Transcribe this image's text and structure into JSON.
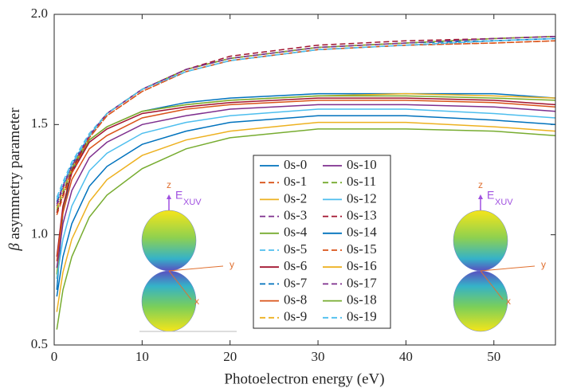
{
  "chart_data": {
    "type": "line",
    "x_label": "Photoelectron energy (eV)",
    "y_label_symbol": "β",
    "y_label": "asymmetry parameter",
    "x": [
      0.3,
      1,
      2,
      4,
      6,
      10,
      15,
      20,
      30,
      40,
      50,
      57
    ],
    "xlim": [
      0,
      57
    ],
    "xticks": [
      0,
      10,
      20,
      30,
      40,
      50
    ],
    "ylim": [
      0.5,
      2
    ],
    "yticks": [
      0.5,
      {
        "value": 1,
        "label": "1.0"
      },
      1.5,
      {
        "value": 2,
        "label": "2.0"
      }
    ],
    "legend": "center-bottom",
    "series": [
      {
        "name": "0s-0",
        "color": "#0072BD",
        "style": "solid",
        "values": [
          0.75,
          1.1,
          1.29,
          1.43,
          1.49,
          1.56,
          1.6,
          1.62,
          1.64,
          1.64,
          1.64,
          1.62
        ]
      },
      {
        "name": "0s-1",
        "color": "#D95319",
        "style": "dashed",
        "values": [
          1.1,
          1.18,
          1.29,
          1.44,
          1.54,
          1.65,
          1.74,
          1.79,
          1.84,
          1.86,
          1.87,
          1.88
        ]
      },
      {
        "name": "0s-2",
        "color": "#EDB120",
        "style": "solid",
        "values": [
          0.8,
          1.12,
          1.3,
          1.43,
          1.49,
          1.56,
          1.59,
          1.61,
          1.63,
          1.64,
          1.63,
          1.62
        ]
      },
      {
        "name": "0s-3",
        "color": "#7E2F8E",
        "style": "dashed",
        "values": [
          1.13,
          1.21,
          1.31,
          1.45,
          1.55,
          1.66,
          1.75,
          1.8,
          1.85,
          1.87,
          1.89,
          1.9
        ]
      },
      {
        "name": "0s-4",
        "color": "#77AC30",
        "style": "solid",
        "values": [
          0.82,
          1.12,
          1.3,
          1.43,
          1.49,
          1.56,
          1.59,
          1.61,
          1.63,
          1.63,
          1.62,
          1.61
        ]
      },
      {
        "name": "0s-5",
        "color": "#4DBEEE",
        "style": "dashed",
        "values": [
          1.17,
          1.24,
          1.33,
          1.46,
          1.55,
          1.66,
          1.74,
          1.79,
          1.84,
          1.86,
          1.88,
          1.89
        ]
      },
      {
        "name": "0s-6",
        "color": "#A2142F",
        "style": "solid",
        "values": [
          0.9,
          1.13,
          1.28,
          1.42,
          1.48,
          1.55,
          1.58,
          1.6,
          1.62,
          1.62,
          1.61,
          1.59
        ]
      },
      {
        "name": "0s-7",
        "color": "#0072BD",
        "style": "dashed",
        "values": [
          1.15,
          1.22,
          1.32,
          1.45,
          1.55,
          1.66,
          1.75,
          1.8,
          1.85,
          1.87,
          1.88,
          1.89
        ]
      },
      {
        "name": "0s-8",
        "color": "#D95319",
        "style": "solid",
        "values": [
          0.88,
          1.1,
          1.25,
          1.39,
          1.45,
          1.53,
          1.57,
          1.59,
          1.61,
          1.61,
          1.6,
          1.58
        ]
      },
      {
        "name": "0s-9",
        "color": "#EDB120",
        "style": "dashed",
        "values": [
          1.12,
          1.2,
          1.3,
          1.45,
          1.55,
          1.66,
          1.75,
          1.8,
          1.85,
          1.87,
          1.89,
          1.9
        ]
      },
      {
        "name": "0s-10",
        "color": "#7E2F8E",
        "style": "solid",
        "values": [
          0.85,
          1.05,
          1.2,
          1.35,
          1.42,
          1.5,
          1.54,
          1.57,
          1.59,
          1.59,
          1.58,
          1.56
        ]
      },
      {
        "name": "0s-11",
        "color": "#77AC30",
        "style": "dashed",
        "values": [
          1.11,
          1.19,
          1.3,
          1.45,
          1.55,
          1.66,
          1.75,
          1.8,
          1.85,
          1.87,
          1.89,
          1.9
        ]
      },
      {
        "name": "0s-12",
        "color": "#4DBEEE",
        "style": "solid",
        "values": [
          0.8,
          0.98,
          1.13,
          1.29,
          1.37,
          1.46,
          1.51,
          1.54,
          1.57,
          1.57,
          1.55,
          1.53
        ]
      },
      {
        "name": "0s-13",
        "color": "#A2142F",
        "style": "dashed",
        "values": [
          1.1,
          1.18,
          1.29,
          1.45,
          1.55,
          1.66,
          1.75,
          1.81,
          1.86,
          1.88,
          1.89,
          1.9
        ]
      },
      {
        "name": "0s-14",
        "color": "#0072BD",
        "style": "solid",
        "values": [
          0.72,
          0.9,
          1.05,
          1.22,
          1.31,
          1.41,
          1.47,
          1.51,
          1.54,
          1.54,
          1.52,
          1.5
        ]
      },
      {
        "name": "0s-15",
        "color": "#D95319",
        "style": "dashed",
        "values": [
          1.09,
          1.17,
          1.28,
          1.44,
          1.54,
          1.65,
          1.74,
          1.79,
          1.84,
          1.86,
          1.87,
          1.88
        ]
      },
      {
        "name": "0s-16",
        "color": "#EDB120",
        "style": "solid",
        "values": [
          0.65,
          0.83,
          0.98,
          1.15,
          1.25,
          1.36,
          1.43,
          1.47,
          1.51,
          1.51,
          1.49,
          1.47
        ]
      },
      {
        "name": "0s-17",
        "color": "#7E2F8E",
        "style": "dashed",
        "values": [
          1.14,
          1.22,
          1.31,
          1.45,
          1.55,
          1.66,
          1.75,
          1.8,
          1.85,
          1.87,
          1.89,
          1.9
        ]
      },
      {
        "name": "0s-18",
        "color": "#77AC30",
        "style": "solid",
        "values": [
          0.57,
          0.75,
          0.9,
          1.08,
          1.18,
          1.3,
          1.39,
          1.44,
          1.48,
          1.48,
          1.47,
          1.45
        ]
      },
      {
        "name": "0s-19",
        "color": "#4DBEEE",
        "style": "dashed",
        "values": [
          1.16,
          1.23,
          1.32,
          1.45,
          1.55,
          1.66,
          1.74,
          1.79,
          1.84,
          1.86,
          1.88,
          1.89
        ]
      }
    ],
    "insets": [
      {
        "z": "z",
        "field": "E",
        "field_sub": "XUV",
        "y": "y",
        "x": "x"
      },
      {
        "z": "z",
        "field": "E",
        "field_sub": "XUV",
        "y": "y",
        "x": "x"
      }
    ]
  }
}
